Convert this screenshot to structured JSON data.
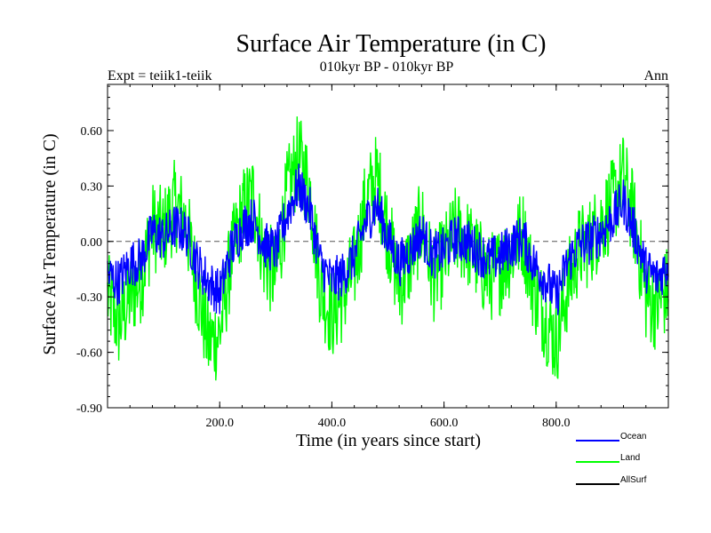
{
  "chart_data": {
    "type": "line",
    "title": "Surface Air Temperature (in C)",
    "subtitle": "010kyr BP - 010kyr BP",
    "left_label": "Expt = teiik1-teiik",
    "right_label": "Ann",
    "xlabel": "Time (in years since start)",
    "ylabel": "Surface Air Temperature (in C)",
    "xlim": [
      0,
      1000
    ],
    "ylim": [
      -0.9,
      0.85
    ],
    "xticks": [
      200,
      400,
      600,
      800
    ],
    "xtick_labels": [
      "200.0",
      "400.0",
      "600.0",
      "800.0"
    ],
    "yticks": [
      -0.9,
      -0.6,
      -0.3,
      0.0,
      0.3,
      0.6
    ],
    "ytick_labels": [
      "-0.90",
      "-0.60",
      "-0.30",
      "0.00",
      "0.30",
      "0.60"
    ],
    "zero_line": true,
    "grid": false,
    "legend_position": "bottom-right",
    "x_sample": [
      0,
      20,
      40,
      60,
      80,
      100,
      120,
      140,
      160,
      180,
      200,
      220,
      240,
      260,
      280,
      300,
      320,
      340,
      360,
      380,
      400,
      420,
      440,
      460,
      480,
      500,
      520,
      540,
      560,
      580,
      600,
      620,
      640,
      660,
      680,
      700,
      720,
      740,
      760,
      780,
      800,
      820,
      840,
      860,
      880,
      900,
      920,
      940,
      960,
      980,
      1000
    ],
    "series": [
      {
        "name": "Ocean",
        "color": "#0000ff",
        "values": [
          -0.18,
          -0.22,
          -0.12,
          -0.1,
          0.05,
          0.02,
          0.08,
          0.05,
          -0.12,
          -0.22,
          -0.28,
          -0.05,
          0.08,
          0.12,
          -0.02,
          -0.05,
          0.15,
          0.3,
          0.18,
          -0.12,
          -0.22,
          -0.18,
          -0.08,
          0.1,
          0.2,
          0.02,
          -0.12,
          -0.05,
          0.05,
          -0.08,
          -0.05,
          0.02,
          0.0,
          -0.05,
          -0.1,
          -0.08,
          -0.02,
          0.02,
          -0.12,
          -0.2,
          -0.3,
          -0.12,
          -0.02,
          0.0,
          0.05,
          0.12,
          0.22,
          0.05,
          -0.15,
          -0.2,
          -0.12
        ]
      },
      {
        "name": "Land",
        "color": "#00ff00",
        "values": [
          -0.3,
          -0.45,
          -0.3,
          -0.2,
          0.08,
          0.05,
          0.2,
          0.1,
          -0.25,
          -0.55,
          -0.5,
          -0.1,
          0.15,
          0.25,
          -0.1,
          -0.2,
          0.25,
          0.45,
          0.3,
          -0.25,
          -0.4,
          -0.3,
          -0.15,
          0.2,
          0.35,
          0.05,
          -0.25,
          -0.1,
          0.1,
          -0.2,
          -0.1,
          0.05,
          0.0,
          -0.1,
          -0.2,
          -0.15,
          -0.05,
          0.05,
          -0.25,
          -0.4,
          -0.55,
          -0.25,
          -0.05,
          0.0,
          0.1,
          0.2,
          0.35,
          0.1,
          -0.3,
          -0.35,
          -0.25
        ]
      },
      {
        "name": "AllSurf",
        "color": "#000000",
        "values": []
      }
    ]
  }
}
